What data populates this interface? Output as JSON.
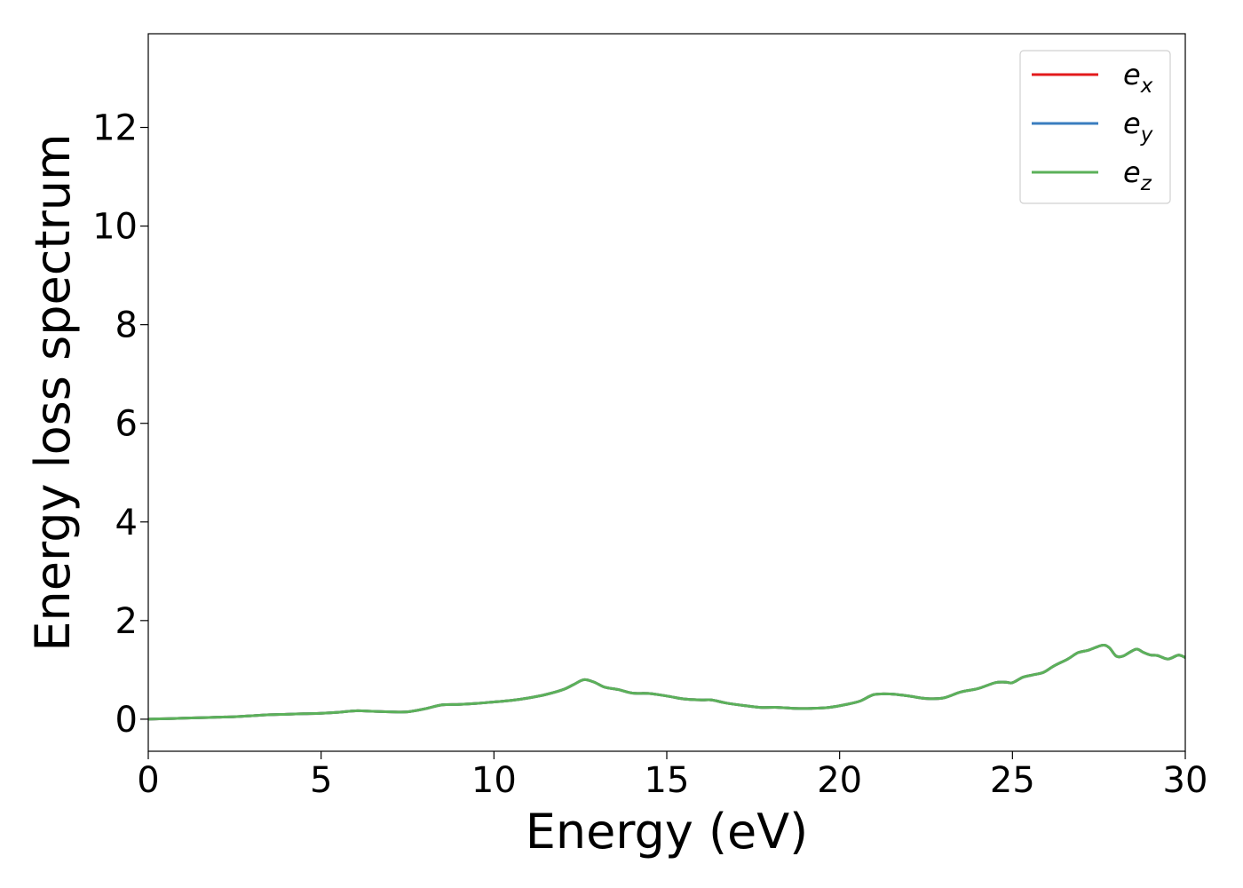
{
  "chart_data": {
    "type": "line",
    "title": "",
    "xlabel": "Energy (eV)",
    "ylabel": "Energy loss spectrum",
    "xlim": [
      0,
      30
    ],
    "ylim": [
      -0.65,
      13.9
    ],
    "xticks": [
      0,
      5,
      10,
      15,
      20,
      25,
      30
    ],
    "yticks": [
      0,
      2,
      4,
      6,
      8,
      10,
      12
    ],
    "grid": false,
    "legend_position": "top-right",
    "x": [
      0,
      0.5,
      1,
      1.5,
      2,
      2.5,
      3,
      3.5,
      4,
      4.5,
      5,
      5.5,
      6,
      6.5,
      7,
      7.5,
      8,
      8.5,
      9,
      9.5,
      10,
      10.5,
      11,
      11.5,
      12,
      12.3,
      12.6,
      12.9,
      13.2,
      13.6,
      14,
      14.5,
      15,
      15.5,
      16,
      16.3,
      16.7,
      17.2,
      17.7,
      18.2,
      18.7,
      19.2,
      19.7,
      20.2,
      20.6,
      21,
      21.5,
      22,
      22.5,
      23,
      23.5,
      24,
      24.5,
      24.8,
      25,
      25.3,
      25.6,
      25.9,
      26.2,
      26.6,
      26.9,
      27.2,
      27.6,
      27.8,
      28,
      28.2,
      28.4,
      28.6,
      28.8,
      29,
      29.2,
      29.5,
      29.8,
      30
    ],
    "series": [
      {
        "name": "e",
        "subscript": "x",
        "color": "#e31a1c",
        "values": [
          0.0,
          0.01,
          0.02,
          0.03,
          0.04,
          0.05,
          0.07,
          0.09,
          0.1,
          0.11,
          0.12,
          0.14,
          0.17,
          0.16,
          0.15,
          0.15,
          0.21,
          0.29,
          0.3,
          0.32,
          0.35,
          0.38,
          0.43,
          0.5,
          0.6,
          0.7,
          0.8,
          0.75,
          0.65,
          0.6,
          0.53,
          0.52,
          0.47,
          0.41,
          0.39,
          0.39,
          0.33,
          0.28,
          0.24,
          0.24,
          0.22,
          0.22,
          0.24,
          0.3,
          0.37,
          0.5,
          0.51,
          0.47,
          0.42,
          0.43,
          0.55,
          0.62,
          0.74,
          0.75,
          0.74,
          0.85,
          0.9,
          0.95,
          1.08,
          1.22,
          1.35,
          1.4,
          1.5,
          1.45,
          1.28,
          1.28,
          1.36,
          1.42,
          1.35,
          1.3,
          1.29,
          1.22,
          1.3,
          1.25
        ]
      },
      {
        "name": "e",
        "subscript": "y",
        "color": "#3a7dbf",
        "values": [
          0.0,
          0.01,
          0.02,
          0.03,
          0.04,
          0.05,
          0.07,
          0.09,
          0.1,
          0.11,
          0.12,
          0.14,
          0.17,
          0.16,
          0.15,
          0.15,
          0.21,
          0.29,
          0.3,
          0.32,
          0.35,
          0.38,
          0.43,
          0.5,
          0.6,
          0.7,
          0.8,
          0.75,
          0.65,
          0.6,
          0.53,
          0.52,
          0.47,
          0.41,
          0.39,
          0.39,
          0.33,
          0.28,
          0.24,
          0.24,
          0.22,
          0.22,
          0.24,
          0.3,
          0.37,
          0.5,
          0.51,
          0.47,
          0.42,
          0.43,
          0.55,
          0.62,
          0.74,
          0.75,
          0.74,
          0.85,
          0.9,
          0.95,
          1.08,
          1.22,
          1.35,
          1.4,
          1.5,
          1.45,
          1.28,
          1.28,
          1.36,
          1.42,
          1.35,
          1.3,
          1.29,
          1.22,
          1.3,
          1.25
        ]
      },
      {
        "name": "e",
        "subscript": "z",
        "color": "#5cb15a",
        "values": [
          0.0,
          0.01,
          0.02,
          0.03,
          0.04,
          0.05,
          0.07,
          0.09,
          0.1,
          0.11,
          0.12,
          0.14,
          0.17,
          0.16,
          0.15,
          0.15,
          0.21,
          0.29,
          0.3,
          0.32,
          0.35,
          0.38,
          0.43,
          0.5,
          0.6,
          0.7,
          0.8,
          0.75,
          0.65,
          0.6,
          0.53,
          0.52,
          0.47,
          0.41,
          0.39,
          0.39,
          0.33,
          0.28,
          0.24,
          0.24,
          0.22,
          0.22,
          0.24,
          0.3,
          0.37,
          0.5,
          0.51,
          0.47,
          0.42,
          0.43,
          0.55,
          0.62,
          0.74,
          0.75,
          0.74,
          0.85,
          0.9,
          0.95,
          1.08,
          1.22,
          1.35,
          1.4,
          1.5,
          1.45,
          1.28,
          1.28,
          1.36,
          1.42,
          1.35,
          1.3,
          1.29,
          1.22,
          1.3,
          1.25
        ]
      }
    ]
  }
}
